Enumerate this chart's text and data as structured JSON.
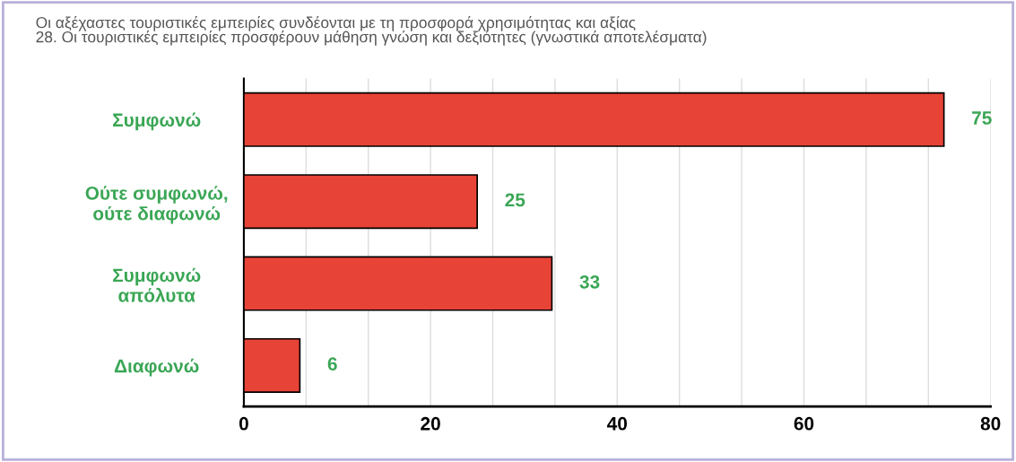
{
  "chart_data": {
    "type": "bar",
    "orientation": "horizontal",
    "title": "Οι αξέχαστες τουριστικές εμπειρίες συνδέονται με τη προσφορά χρησιμότητας και αξίας\n28. Οι τουριστικές εμπειρίες προσφέρουν μάθηση γνώση και δεξιότητες (γνωστικά αποτελέσματα)",
    "categories": [
      "Συμφωνώ",
      "Ούτε συμφωνώ,\nούτε διαφωνώ",
      "Συμφωνώ\nαπόλυτα",
      "Διαφωνώ"
    ],
    "values": [
      75,
      25,
      33,
      6
    ],
    "color": "#e84337",
    "data_labels": true,
    "xlim": [
      0,
      80
    ],
    "xticks": [
      0,
      {
        "value": 6.667,
        "label": null
      },
      {
        "value": 13.333,
        "label": null
      },
      20,
      {
        "value": 26.667,
        "label": null
      },
      {
        "value": 33.333,
        "label": null
      },
      40,
      {
        "value": 46.667,
        "label": null
      },
      {
        "value": 53.333,
        "label": null
      },
      60,
      {
        "value": 66.667,
        "label": null
      },
      {
        "value": 73.333,
        "label": null
      },
      80
    ],
    "grid": "x"
  }
}
